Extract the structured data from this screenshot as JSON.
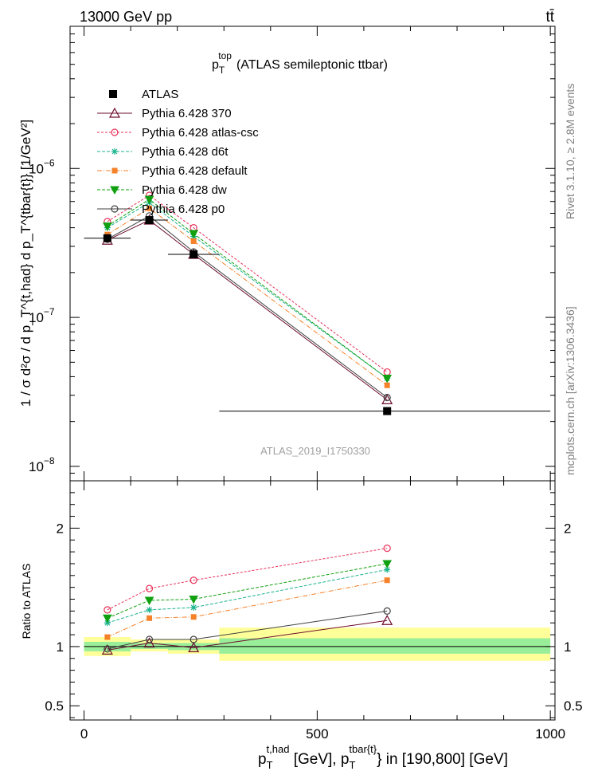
{
  "header": {
    "energy_label": "13000 GeV pp",
    "process_label": "tt̄",
    "watermark": "ATLAS_2019_I1750330"
  },
  "side_text": {
    "rivet": "Rivet 3.1.10, ≥ 2.8M events",
    "mcplots": "mcplots.cern.ch [arXiv:1306.3436]"
  },
  "colors": {
    "atlas": "#000000",
    "p370": "#6d0c2d",
    "atlas_csc": "#e8325a",
    "d6t": "#1ab38c",
    "default": "#f5822a",
    "dw": "#10a010",
    "p0": "#404040",
    "band_outer": "#ffff99",
    "band_inner": "#99ee99"
  },
  "chart_data": [
    {
      "type": "line",
      "title": "p_T^top (ATLAS semileptonic ttbar)",
      "title_parts": {
        "main": "p",
        "sub": "T",
        "sup": "top",
        "rest": "(ATLAS semileptonic ttbar)"
      },
      "ylabel": "1 / σ d²σ / d p_T^{t,had} d p_T^{tbar{t}} [1/GeV²]",
      "yscale": "log",
      "ylim": [
        8e-09,
        9e-06
      ],
      "xlim": [
        -30,
        1010
      ],
      "y_ticks": [
        {
          "value": 1e-08,
          "label": "10",
          "exp": "−8"
        },
        {
          "value": 1e-07,
          "label": "10",
          "exp": "−7"
        },
        {
          "value": 1e-06,
          "label": "10",
          "exp": "−6"
        }
      ],
      "legend_position": "top-left",
      "legend": [
        {
          "label": "ATLAS",
          "key": "atlas"
        },
        {
          "label": "Pythia 6.428 370",
          "key": "p370"
        },
        {
          "label": "Pythia 6.428 atlas-csc",
          "key": "atlas_csc"
        },
        {
          "label": "Pythia 6.428 d6t",
          "key": "d6t"
        },
        {
          "label": "Pythia 6.428 default",
          "key": "default"
        },
        {
          "label": "Pythia 6.428 dw",
          "key": "dw"
        },
        {
          "label": "Pythia 6.428 p0",
          "key": "p0"
        }
      ],
      "data": {
        "name": "ATLAS",
        "x": [
          50,
          140,
          235,
          650
        ],
        "x_edges": [
          [
            0,
            100
          ],
          [
            100,
            180
          ],
          [
            180,
            290
          ],
          [
            290,
            1000
          ]
        ],
        "y": [
          3.4e-07,
          4.5e-07,
          2.65e-07,
          2.35e-08
        ]
      },
      "series": [
        {
          "name": "Pythia 6.428 370",
          "key": "p370",
          "marker": "triangle-open",
          "dash": "",
          "x": [
            50,
            140,
            235,
            650
          ],
          "y": [
            3.3e-07,
            4.5e-07,
            2.65e-07,
            2.8e-08
          ]
        },
        {
          "name": "Pythia 6.428 atlas-csc",
          "key": "atlas_csc",
          "marker": "circle-open",
          "dash": "3,2",
          "x": [
            50,
            140,
            235,
            650
          ],
          "y": [
            4.4e-07,
            6.6e-07,
            4e-07,
            4.3e-08
          ]
        },
        {
          "name": "Pythia 6.428 d6t",
          "key": "d6t",
          "marker": "star",
          "dash": "4,2",
          "x": [
            50,
            140,
            235,
            650
          ],
          "y": [
            4e-07,
            5.9e-07,
            3.5e-07,
            3.9e-08
          ]
        },
        {
          "name": "Pythia 6.428 default",
          "key": "default",
          "marker": "square",
          "dash": "6,2,1,2",
          "x": [
            50,
            140,
            235,
            650
          ],
          "y": [
            3.6e-07,
            5.4e-07,
            3.25e-07,
            3.5e-08
          ]
        },
        {
          "name": "Pythia 6.428 dw",
          "key": "dw",
          "marker": "triangle-down",
          "dash": "4,2",
          "x": [
            50,
            140,
            235,
            650
          ],
          "y": [
            4.1e-07,
            6.2e-07,
            3.65e-07,
            3.9e-08
          ]
        },
        {
          "name": "Pythia 6.428 p0",
          "key": "p0",
          "marker": "circle-open",
          "dash": "",
          "x": [
            50,
            140,
            235,
            650
          ],
          "y": [
            3.35e-07,
            4.8e-07,
            2.75e-07,
            2.9e-08
          ]
        }
      ]
    },
    {
      "type": "line",
      "ylabel": "Ratio to ATLAS",
      "xlabel": "p_T^{t,had} [GeV], p_T^{tbar{t}} in [190,800] [GeV]",
      "xlabel_parts": {
        "p1": "p",
        "sub1": "T",
        "sup1": "t,had",
        "mid": " [GeV], p",
        "sub2": "T",
        "sup2": "tbar{t}",
        "rest": "} in [190,800] [GeV]"
      },
      "ylim": [
        0.38,
        2.4
      ],
      "xlim": [
        -30,
        1010
      ],
      "y_ticks": [
        {
          "value": 0.5,
          "label": "0.5"
        },
        {
          "value": 1,
          "label": "1"
        },
        {
          "value": 2,
          "label": "2"
        }
      ],
      "x_ticks": [
        {
          "value": 0,
          "label": "0"
        },
        {
          "value": 500,
          "label": "500"
        },
        {
          "value": 1000,
          "label": "1000"
        }
      ],
      "bands": [
        {
          "x_edges": [
            0,
            100
          ],
          "outer": [
            0.92,
            1.08
          ],
          "inner": [
            0.96,
            1.04
          ]
        },
        {
          "x_edges": [
            100,
            180
          ],
          "outer": [
            0.96,
            1.06
          ],
          "inner": [
            0.98,
            1.03
          ]
        },
        {
          "x_edges": [
            180,
            290
          ],
          "outer": [
            0.94,
            1.06
          ],
          "inner": [
            0.97,
            1.03
          ]
        },
        {
          "x_edges": [
            290,
            1000
          ],
          "outer": [
            0.88,
            1.16
          ],
          "inner": [
            0.94,
            1.07
          ]
        }
      ],
      "series": [
        {
          "name": "Pythia 6.428 370",
          "key": "p370",
          "marker": "triangle-open",
          "dash": "",
          "x": [
            50,
            140,
            235,
            650
          ],
          "y": [
            0.97,
            1.03,
            0.99,
            1.22
          ]
        },
        {
          "name": "Pythia 6.428 atlas-csc",
          "key": "atlas_csc",
          "marker": "circle-open",
          "dash": "3,2",
          "x": [
            50,
            140,
            235,
            650
          ],
          "y": [
            1.31,
            1.49,
            1.56,
            1.83
          ]
        },
        {
          "name": "Pythia 6.428 d6t",
          "key": "d6t",
          "marker": "star",
          "dash": "4,2",
          "x": [
            50,
            140,
            235,
            650
          ],
          "y": [
            1.2,
            1.31,
            1.33,
            1.65
          ]
        },
        {
          "name": "Pythia 6.428 default",
          "key": "default",
          "marker": "square",
          "dash": "6,2,1,2",
          "x": [
            50,
            140,
            235,
            650
          ],
          "y": [
            1.08,
            1.24,
            1.25,
            1.56
          ]
        },
        {
          "name": "Pythia 6.428 dw",
          "key": "dw",
          "marker": "triangle-down",
          "dash": "4,2",
          "x": [
            50,
            140,
            235,
            650
          ],
          "y": [
            1.24,
            1.39,
            1.4,
            1.7
          ]
        },
        {
          "name": "Pythia 6.428 p0",
          "key": "p0",
          "marker": "circle-open",
          "dash": "",
          "x": [
            50,
            140,
            235,
            650
          ],
          "y": [
            0.98,
            1.06,
            1.06,
            1.3
          ]
        }
      ]
    }
  ]
}
